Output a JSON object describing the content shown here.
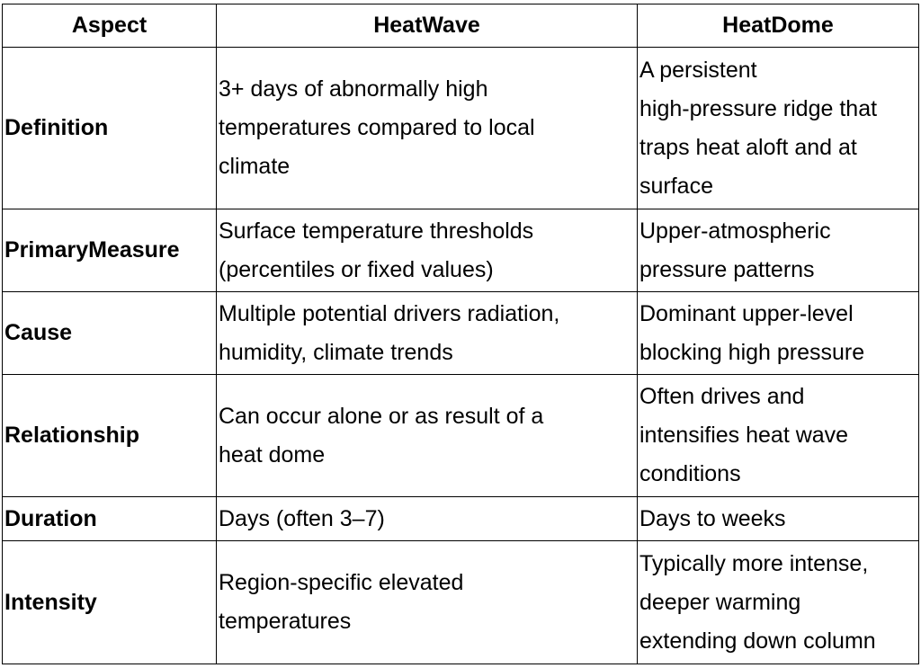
{
  "table": {
    "header": [
      "Aspect",
      "HeatWave",
      "HeatDome"
    ],
    "rows": [
      [
        [
          "Definition"
        ],
        [
          "3+ days of abnormally high",
          "temperatures compared to local",
          "climate"
        ],
        [
          "A persistent",
          "high-pressure ridge that",
          "traps heat aloft and at",
          "surface"
        ]
      ],
      [
        [
          "PrimaryMeasure"
        ],
        [
          "Surface temperature thresholds",
          "(percentiles or fixed values)"
        ],
        [
          "Upper-atmospheric",
          "pressure patterns"
        ]
      ],
      [
        [
          "Cause"
        ],
        [
          "Multiple potential drivers radiation,",
          "humidity, climate trends"
        ],
        [
          "Dominant upper-level",
          "blocking high pressure"
        ]
      ],
      [
        [
          "Relationship"
        ],
        [
          "Can occur alone or as result of a",
          "heat dome"
        ],
        [
          "Often drives and",
          "intensifies heat wave",
          "conditions"
        ]
      ],
      [
        [
          "Duration"
        ],
        [
          "Days (often 3–7)"
        ],
        [
          "Days to weeks"
        ]
      ],
      [
        [
          "Intensity"
        ],
        [
          "Region-specific elevated",
          "temperatures"
        ],
        [
          "Typically more intense,",
          "deeper warming",
          "extending down column"
        ]
      ]
    ]
  }
}
